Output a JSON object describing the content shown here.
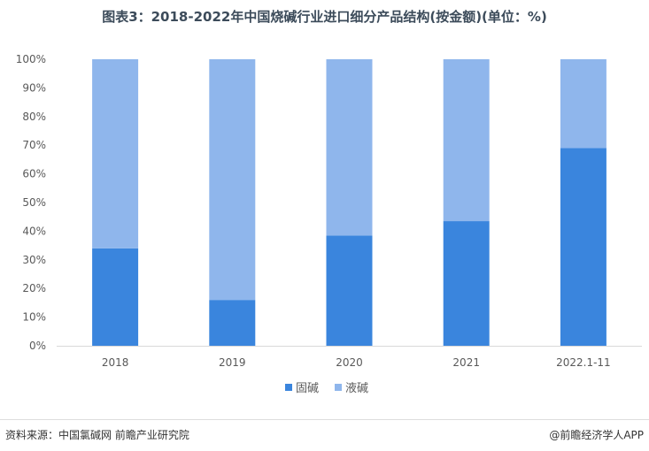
{
  "title": "图表3：2018-2022年中国烧碱行业进口细分产品结构(按金额)(单位：%)",
  "footer": {
    "source": "资料来源：中国氯碱网 前瞻产业研究院",
    "brand": "@前瞻经济学人APP"
  },
  "colors": {
    "solid": "#3a85dd",
    "liquid": "#8fb6ec",
    "axis": "#d9d9d9",
    "tick_text": "#595959"
  },
  "chart_data": {
    "type": "bar",
    "stacked": true,
    "categories": [
      "2018",
      "2019",
      "2020",
      "2021",
      "2022.1-11"
    ],
    "series": [
      {
        "name": "固碱",
        "values": [
          34,
          16,
          38.5,
          43.5,
          69
        ]
      },
      {
        "name": "液碱",
        "values": [
          66,
          84,
          61.5,
          56.5,
          31
        ]
      }
    ],
    "ylim": [
      0,
      100
    ],
    "y_ticks": [
      "0%",
      "10%",
      "20%",
      "30%",
      "40%",
      "50%",
      "60%",
      "70%",
      "80%",
      "90%",
      "100%"
    ],
    "legend_position": "bottom",
    "grid": false
  }
}
